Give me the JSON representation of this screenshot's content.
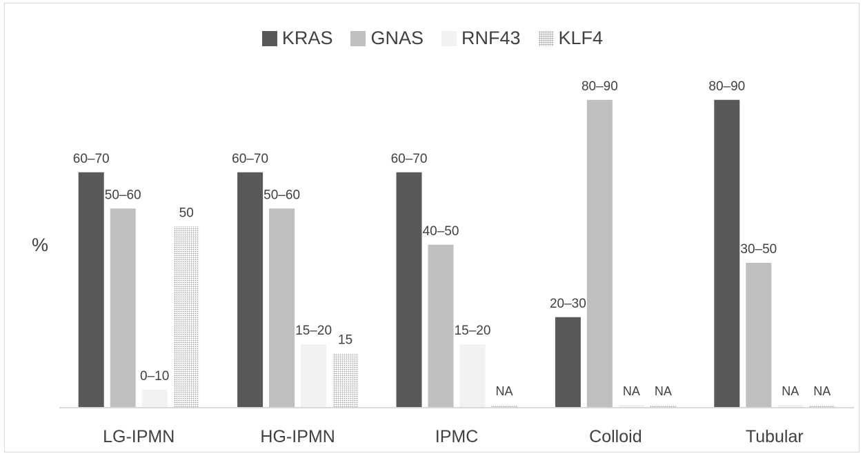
{
  "chart_data": {
    "type": "bar",
    "title": "",
    "xlabel": "",
    "ylabel": "%",
    "ylim": [
      0,
      100
    ],
    "grid": false,
    "legend_position": "top",
    "categories": [
      "LG-IPMN",
      "HG-IPMN",
      "IPMC",
      "Colloid",
      "Tubular"
    ],
    "series": [
      {
        "name": "KRAS",
        "color": "#595959",
        "pattern": "solid",
        "values": [
          65,
          65,
          65,
          25,
          85
        ],
        "labels": [
          "60–70",
          "60–70",
          "60–70",
          "20–30",
          "80–90"
        ]
      },
      {
        "name": "GNAS",
        "color": "#bfbfbf",
        "pattern": "solid",
        "values": [
          55,
          55,
          45,
          85,
          40
        ],
        "labels": [
          "50–60",
          "50–60",
          "40–50",
          "80–90",
          "30–50"
        ]
      },
      {
        "name": "RNF43",
        "color": "#f2f2f2",
        "pattern": "solid",
        "values": [
          5,
          17.5,
          17.5,
          0,
          0
        ],
        "labels": [
          "0–10",
          "15–20",
          "15–20",
          "NA",
          "NA"
        ]
      },
      {
        "name": "KLF4",
        "color": "#d9d9d9",
        "pattern": "dotted",
        "values": [
          50,
          15,
          0,
          0,
          0
        ],
        "labels": [
          "50",
          "15",
          "NA",
          "NA",
          "NA"
        ]
      }
    ]
  }
}
